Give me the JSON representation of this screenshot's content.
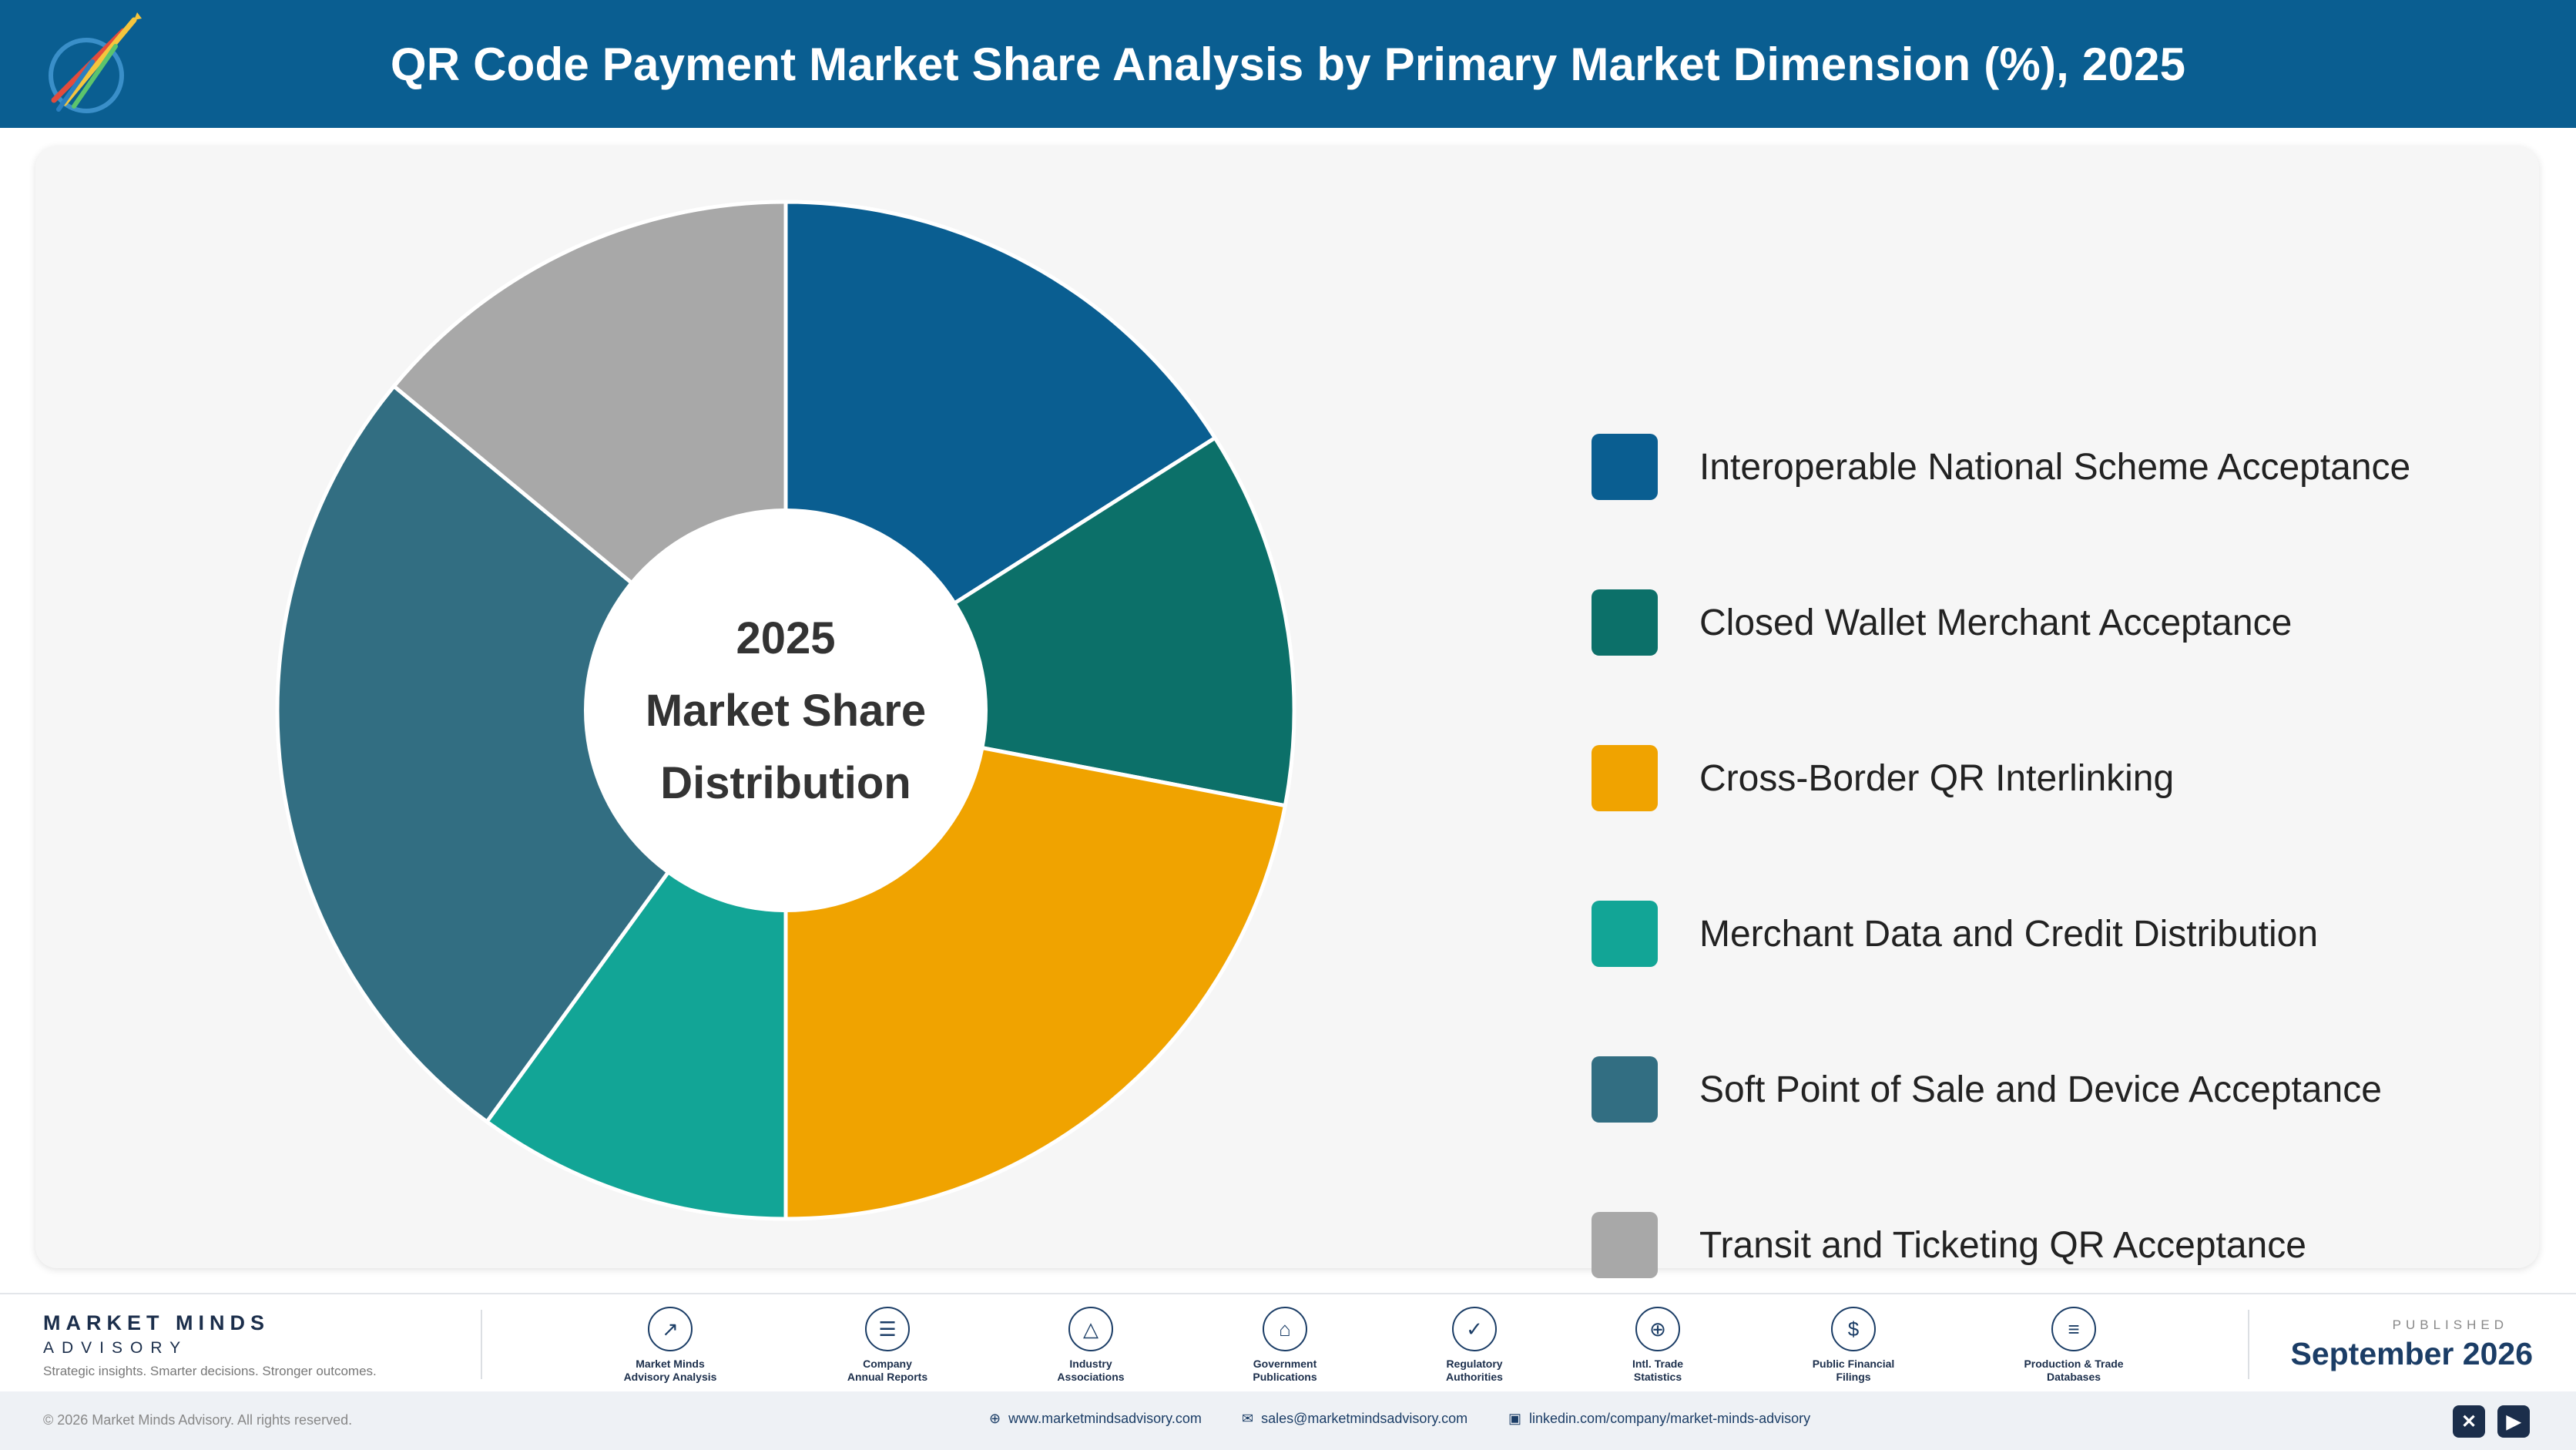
{
  "header": {
    "title": "QR Code Payment Market Share Analysis by Primary Market Dimension (%), 2025"
  },
  "center_label": {
    "line1": "2025",
    "line2": "Market Share",
    "line3": "Distribution"
  },
  "chart_data": {
    "type": "pie",
    "variant": "donut",
    "title": "QR Code Payment Market Share Analysis by Primary Market Dimension (%), 2025",
    "categories": [
      "Interoperable National Scheme Acceptance",
      "Closed Wallet Merchant Acceptance",
      "Cross-Border QR Interlinking",
      "Merchant Data and Credit Distribution",
      "Soft Point of Sale and Device Acceptance",
      "Transit and Ticketing QR Acceptance"
    ],
    "values": [
      16,
      12,
      22,
      10,
      26,
      14
    ],
    "colors": [
      "#0a5e91",
      "#0c7069",
      "#f0a300",
      "#12a596",
      "#326e82",
      "#a8a8a8"
    ],
    "legend_position": "right"
  },
  "footer": {
    "brand": "MARKET MINDS",
    "brand_sub": "ADVISORY",
    "tagline": "Strategic insights. Smarter decisions. Stronger outcomes.",
    "sources": [
      {
        "icon": "chart-line-icon",
        "glyph": "↗",
        "line1": "Market Minds",
        "line2": "Advisory Analysis"
      },
      {
        "icon": "document-icon",
        "glyph": "☰",
        "line1": "Company",
        "line2": "Annual Reports"
      },
      {
        "icon": "network-icon",
        "glyph": "△",
        "line1": "Industry",
        "line2": "Associations"
      },
      {
        "icon": "government-building-icon",
        "glyph": "⌂",
        "line1": "Government",
        "line2": "Publications"
      },
      {
        "icon": "shield-check-icon",
        "glyph": "✓",
        "line1": "Regulatory",
        "line2": "Authorities"
      },
      {
        "icon": "globe-icon",
        "glyph": "⊕",
        "line1": "Intl. Trade",
        "line2": "Statistics"
      },
      {
        "icon": "dollar-coin-icon",
        "glyph": "$",
        "line1": "Public Financial",
        "line2": "Filings"
      },
      {
        "icon": "database-icon",
        "glyph": "≡",
        "line1": "Production & Trade",
        "line2": "Databases"
      }
    ],
    "published_label": "PUBLISHED",
    "published_date": "September 2026"
  },
  "bottom": {
    "copyright": "© 2026 Market Minds Advisory. All rights reserved.",
    "website": "www.marketmindsadvisory.com",
    "email": "sales@marketmindsadvisory.com",
    "linkedin": "linkedin.com/company/market-minds-advisory"
  }
}
